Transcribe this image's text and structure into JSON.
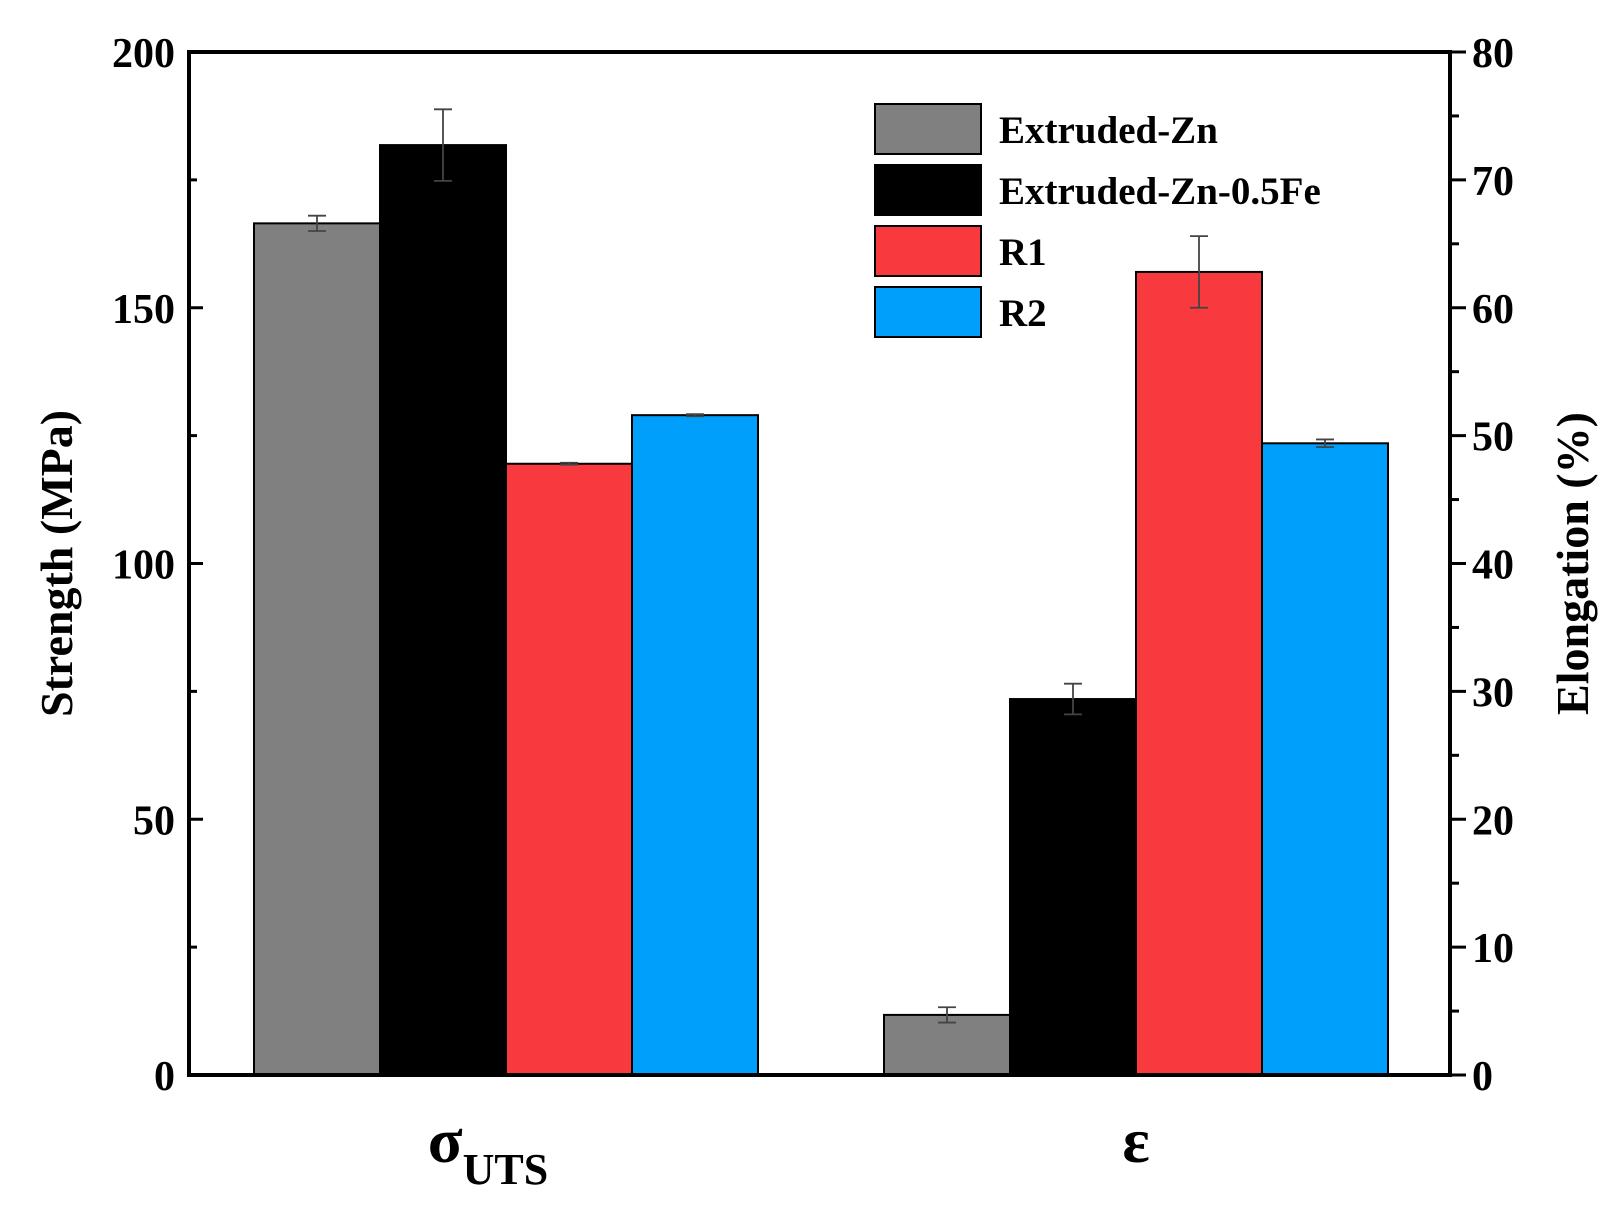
{
  "chart_data": {
    "type": "bar",
    "categories": [
      "σ",
      "ε"
    ],
    "category_subscripts": [
      "UTS",
      ""
    ],
    "category_axis": [
      "left",
      "right"
    ],
    "series": [
      {
        "name": "Extruded-Zn",
        "color": "#808080",
        "values": [
          166.5,
          4.7
        ],
        "errors": [
          1.5,
          0.6
        ]
      },
      {
        "name": "Extruded-Zn-0.5Fe",
        "color": "#000000",
        "values": [
          181.8,
          29.4
        ],
        "errors": [
          7.0,
          1.2
        ]
      },
      {
        "name": "R1",
        "color": "#f83a3e",
        "values": [
          119.5,
          62.8
        ],
        "errors": [
          0.2,
          2.8
        ]
      },
      {
        "name": "R2",
        "color": "#009ffc",
        "values": [
          129.0,
          49.4
        ],
        "errors": [
          0.2,
          0.3
        ]
      }
    ],
    "left_axis": {
      "label": "Strength (MPa)",
      "ylim": [
        0,
        200
      ],
      "ticks": [
        0,
        50,
        100,
        150,
        200
      ]
    },
    "right_axis": {
      "label": "Elongation (%)",
      "ylim": [
        0,
        80
      ],
      "ticks": [
        0,
        10,
        20,
        30,
        40,
        50,
        60,
        70,
        80
      ]
    },
    "legend_position": "top-right",
    "grid": false,
    "title": ""
  }
}
